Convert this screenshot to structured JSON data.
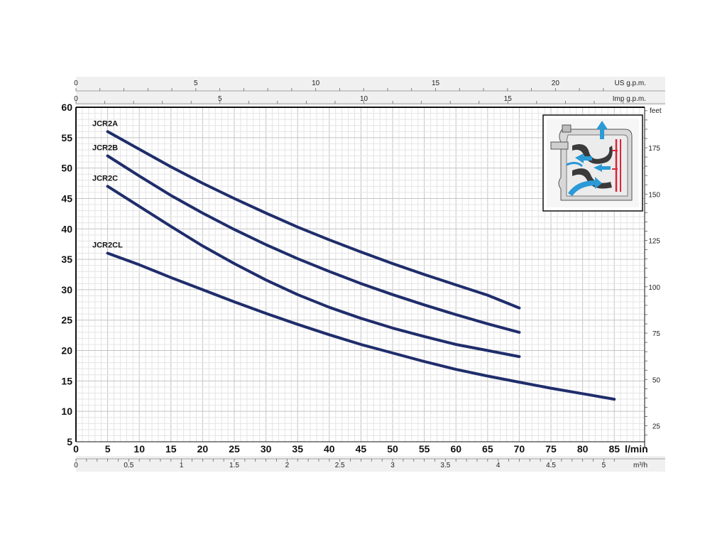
{
  "chart_data": {
    "type": "line",
    "title": "",
    "grid": true,
    "xlabel": "l/min",
    "ylabel": "",
    "xlim": [
      0,
      90
    ],
    "ylim": [
      5,
      60
    ],
    "x_ticks": [
      0,
      5,
      10,
      15,
      20,
      25,
      30,
      35,
      40,
      45,
      50,
      55,
      60,
      65,
      70,
      75,
      80,
      85
    ],
    "y_ticks": [
      5,
      10,
      15,
      20,
      25,
      30,
      35,
      40,
      45,
      50,
      55,
      60
    ],
    "right_axis": {
      "label": "feet",
      "ticks": [
        25,
        50,
        75,
        100,
        125,
        150,
        175
      ]
    },
    "top_axes": [
      {
        "label": "US g.p.m.",
        "factor": 3.78541,
        "ticks": [
          0,
          5,
          10,
          15,
          20
        ]
      },
      {
        "label": "Imp g.p.m.",
        "factor": 4.54609,
        "ticks": [
          0,
          5,
          10,
          15
        ]
      }
    ],
    "bottom_axis2": {
      "label": "m³/h",
      "factor": 16.6667,
      "ticks": [
        "0",
        "0.5",
        "1",
        "1.5",
        "2",
        "2.5",
        "3",
        "3.5",
        "4",
        "4.5",
        "5"
      ]
    },
    "series": [
      {
        "name": "JCR2A",
        "x": [
          5,
          10,
          15,
          20,
          25,
          30,
          35,
          40,
          45,
          50,
          55,
          60,
          65,
          70
        ],
        "y": [
          56,
          53.1,
          50.2,
          47.5,
          45,
          42.6,
          40.3,
          38.2,
          36.2,
          34.3,
          32.5,
          30.8,
          29.1,
          27
        ]
      },
      {
        "name": "JCR2B",
        "x": [
          5,
          10,
          15,
          20,
          25,
          30,
          35,
          40,
          45,
          50,
          55,
          60,
          65,
          70
        ],
        "y": [
          52,
          48.7,
          45.5,
          42.6,
          39.9,
          37.4,
          35.1,
          33,
          31,
          29.2,
          27.5,
          25.9,
          24.4,
          23
        ]
      },
      {
        "name": "JCR2C",
        "x": [
          5,
          10,
          15,
          20,
          25,
          30,
          35,
          40,
          45,
          50,
          55,
          60,
          65,
          70
        ],
        "y": [
          47,
          43.7,
          40.4,
          37.2,
          34.3,
          31.6,
          29.2,
          27.1,
          25.3,
          23.7,
          22.3,
          21,
          20,
          19
        ]
      },
      {
        "name": "JCR2CL",
        "x": [
          5,
          10,
          15,
          20,
          25,
          30,
          35,
          40,
          45,
          50,
          55,
          60,
          65,
          70,
          75,
          80,
          85
        ],
        "y": [
          36,
          34.1,
          32,
          30,
          28,
          26.1,
          24.3,
          22.6,
          21,
          19.6,
          18.2,
          16.9,
          15.8,
          14.8,
          13.8,
          12.9,
          12
        ]
      }
    ],
    "colors": {
      "curve": "#1f2d6b",
      "grid_major": "#c4c4c4",
      "grid_minor": "#e4e4e4",
      "band": "#f0f0f0",
      "inset_blue": "#2b9ad6",
      "inset_red": "#d9263a"
    }
  },
  "inset": {
    "icon": "pump-cross-section-icon"
  }
}
